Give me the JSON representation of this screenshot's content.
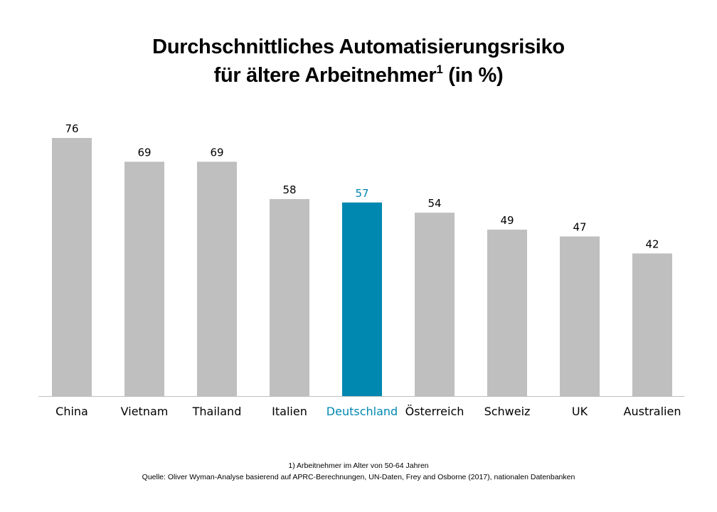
{
  "chart_data": {
    "type": "bar",
    "title_line1": "Durchschnittliches Automatisierungsrisiko",
    "title_line2_main": "für ältere Arbeitnehmer",
    "title_line2_sup": "1",
    "title_line2_tail": " (in %)",
    "categories": [
      "China",
      "Vietnam",
      "Thailand",
      "Italien",
      "Deutschland",
      "Österreich",
      "Schweiz",
      "UK",
      "Australien"
    ],
    "values": [
      76,
      69,
      69,
      58,
      57,
      54,
      49,
      47,
      42
    ],
    "highlight_index": 4,
    "xlabel": "",
    "ylabel": "",
    "ylim": [
      0,
      80
    ],
    "grid": false,
    "legend": "none",
    "data_labels": true,
    "colors": {
      "bar": "#bfbfbf",
      "highlight": "#0088b0",
      "axis": "#bfbfbf",
      "text": "#000000"
    }
  },
  "footnotes": {
    "note1": "1) Arbeitnehmer  im Alter von 50-64 Jahren",
    "source": "Quelle: Oliver Wyman-Analyse basierend auf APRC-Berechnungen,  UN-Daten,  Frey and Osborne (2017), nationalen Datenbanken"
  }
}
